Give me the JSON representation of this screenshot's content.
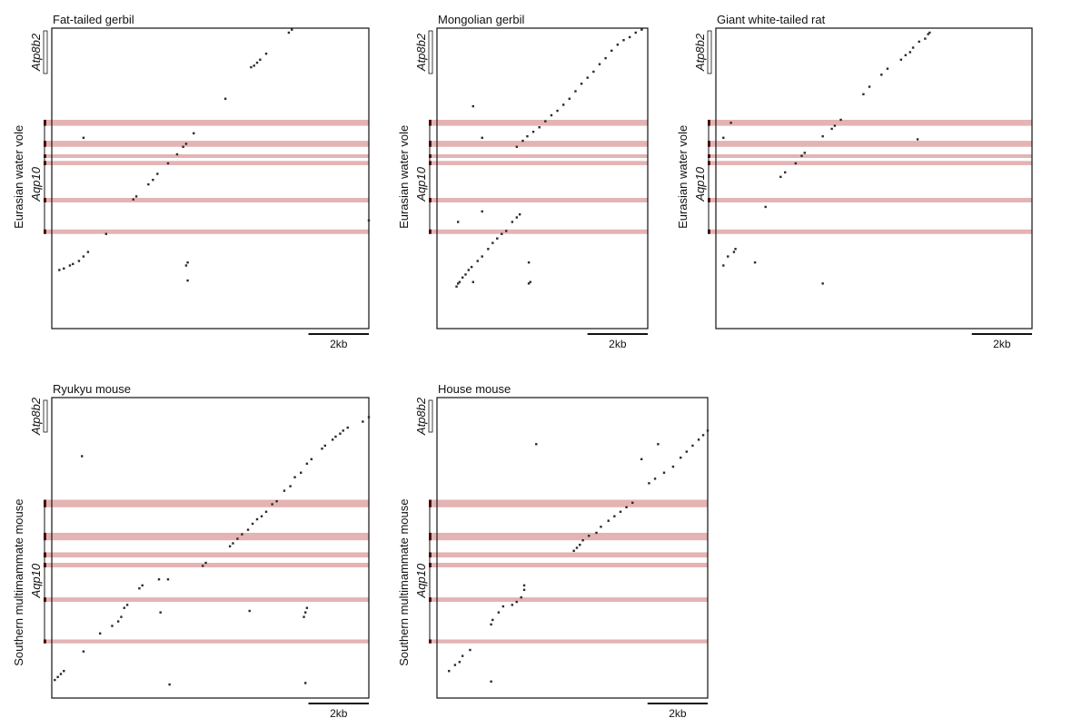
{
  "figure": {
    "scale_label": "2kb",
    "colors": {
      "dot": "#2b2b2b",
      "band": "#e4b3b3",
      "frame": "#111111",
      "gene_marker": "#6b0d0d"
    }
  },
  "chart_data": [
    {
      "type": "scatter",
      "title": "Fat-tailed gerbil",
      "ylabel": "Eurasian water vole",
      "gene_labels": [
        "Atp8b2",
        "Aqp10"
      ],
      "scale_label": "2kb",
      "x_range_kb": [
        0,
        10.5
      ],
      "y_range_kb": [
        0,
        10.0
      ],
      "scale_bar_kb": 2,
      "highlight_bands_kb": [
        [
          3.05,
          3.25
        ],
        [
          3.75,
          3.95
        ],
        [
          4.2,
          4.32
        ],
        [
          4.42,
          4.56
        ],
        [
          5.65,
          5.8
        ],
        [
          6.7,
          6.85
        ]
      ],
      "points": [
        [
          0.25,
          8.05
        ],
        [
          0.4,
          8.0
        ],
        [
          0.6,
          7.9
        ],
        [
          0.7,
          7.85
        ],
        [
          0.9,
          7.75
        ],
        [
          1.05,
          7.6
        ],
        [
          1.2,
          7.45
        ],
        [
          1.8,
          6.85
        ],
        [
          2.7,
          5.7
        ],
        [
          2.8,
          5.6
        ],
        [
          3.2,
          5.2
        ],
        [
          3.35,
          5.05
        ],
        [
          3.5,
          4.85
        ],
        [
          3.85,
          4.5
        ],
        [
          4.15,
          4.2
        ],
        [
          4.35,
          3.95
        ],
        [
          4.45,
          3.85
        ],
        [
          4.7,
          3.5
        ],
        [
          1.05,
          3.65
        ],
        [
          5.75,
          2.35
        ],
        [
          6.6,
          1.3
        ],
        [
          6.7,
          1.25
        ],
        [
          6.8,
          1.15
        ],
        [
          6.9,
          1.05
        ],
        [
          7.1,
          0.85
        ],
        [
          7.85,
          0.15
        ],
        [
          7.95,
          0.05
        ],
        [
          4.5,
          7.8
        ],
        [
          4.45,
          7.9
        ],
        [
          4.5,
          8.4
        ],
        [
          10.5,
          6.4
        ]
      ]
    },
    {
      "type": "scatter",
      "title": "Mongolian gerbil",
      "ylabel": "Eurasian water vole",
      "gene_labels": [
        "Atp8b2",
        "Aqp10"
      ],
      "scale_label": "2kb",
      "x_range_kb": [
        0,
        7.0
      ],
      "y_range_kb": [
        0,
        10.0
      ],
      "scale_bar_kb": 2,
      "highlight_bands_kb": [
        [
          3.05,
          3.25
        ],
        [
          3.75,
          3.95
        ],
        [
          4.2,
          4.32
        ],
        [
          4.42,
          4.56
        ],
        [
          5.65,
          5.8
        ],
        [
          6.7,
          6.85
        ]
      ],
      "points": [
        [
          0.65,
          8.6
        ],
        [
          0.7,
          8.5
        ],
        [
          0.75,
          8.45
        ],
        [
          0.85,
          8.3
        ],
        [
          0.95,
          8.2
        ],
        [
          1.05,
          8.05
        ],
        [
          1.15,
          7.95
        ],
        [
          1.35,
          7.75
        ],
        [
          1.5,
          7.6
        ],
        [
          1.7,
          7.35
        ],
        [
          1.85,
          7.15
        ],
        [
          2.0,
          7.0
        ],
        [
          2.15,
          6.85
        ],
        [
          2.3,
          6.75
        ],
        [
          2.5,
          6.45
        ],
        [
          2.65,
          6.3
        ],
        [
          2.75,
          6.2
        ],
        [
          2.65,
          3.95
        ],
        [
          2.85,
          3.75
        ],
        [
          3.0,
          3.6
        ],
        [
          3.2,
          3.45
        ],
        [
          3.4,
          3.3
        ],
        [
          3.6,
          3.1
        ],
        [
          3.8,
          2.9
        ],
        [
          4.0,
          2.75
        ],
        [
          4.2,
          2.55
        ],
        [
          4.4,
          2.35
        ],
        [
          4.6,
          2.1
        ],
        [
          4.8,
          1.85
        ],
        [
          5.0,
          1.65
        ],
        [
          5.2,
          1.45
        ],
        [
          5.4,
          1.2
        ],
        [
          5.6,
          1.0
        ],
        [
          5.8,
          0.75
        ],
        [
          6.0,
          0.55
        ],
        [
          6.2,
          0.4
        ],
        [
          6.4,
          0.3
        ],
        [
          6.6,
          0.15
        ],
        [
          6.8,
          0.05
        ],
        [
          1.2,
          2.6
        ],
        [
          1.5,
          3.65
        ],
        [
          1.5,
          6.1
        ],
        [
          0.7,
          6.45
        ],
        [
          1.2,
          8.45
        ],
        [
          3.05,
          7.8
        ],
        [
          3.1,
          8.45
        ],
        [
          3.05,
          8.5
        ]
      ]
    },
    {
      "type": "scatter",
      "title": "Giant white-tailed rat",
      "ylabel": "Eurasian water vole",
      "gene_labels": [
        "Atp8b2",
        "Aqp10"
      ],
      "scale_label": "2kb",
      "x_range_kb": [
        0,
        10.5
      ],
      "y_range_kb": [
        0,
        10.0
      ],
      "scale_bar_kb": 2,
      "highlight_bands_kb": [
        [
          3.05,
          3.25
        ],
        [
          3.75,
          3.95
        ],
        [
          4.2,
          4.32
        ],
        [
          4.42,
          4.56
        ],
        [
          5.65,
          5.8
        ],
        [
          6.7,
          6.85
        ]
      ],
      "points": [
        [
          0.25,
          7.9
        ],
        [
          0.4,
          7.6
        ],
        [
          0.6,
          7.45
        ],
        [
          0.65,
          7.35
        ],
        [
          1.65,
          5.95
        ],
        [
          2.15,
          4.95
        ],
        [
          2.3,
          4.8
        ],
        [
          2.65,
          4.5
        ],
        [
          2.85,
          4.25
        ],
        [
          2.95,
          4.15
        ],
        [
          3.55,
          3.6
        ],
        [
          3.85,
          3.35
        ],
        [
          3.95,
          3.25
        ],
        [
          4.15,
          3.05
        ],
        [
          4.9,
          2.2
        ],
        [
          5.1,
          1.95
        ],
        [
          5.5,
          1.55
        ],
        [
          5.7,
          1.35
        ],
        [
          6.15,
          1.05
        ],
        [
          6.3,
          0.9
        ],
        [
          6.45,
          0.8
        ],
        [
          6.55,
          0.65
        ],
        [
          6.75,
          0.45
        ],
        [
          6.95,
          0.35
        ],
        [
          7.05,
          0.2
        ],
        [
          7.1,
          0.15
        ],
        [
          0.5,
          3.15
        ],
        [
          0.25,
          3.65
        ],
        [
          3.55,
          8.5
        ],
        [
          1.3,
          7.8
        ],
        [
          6.7,
          3.7
        ]
      ]
    },
    {
      "type": "scatter",
      "title": "Ryukyu mouse",
      "ylabel": "Southern multimammate mouse",
      "gene_labels": [
        "Atp8b2",
        "Aqp10"
      ],
      "scale_label": "2kb",
      "x_range_kb": [
        0,
        10.5
      ],
      "y_range_kb": [
        0,
        10.0
      ],
      "scale_bar_kb": 2,
      "highlight_bands_kb": [
        [
          3.4,
          3.65
        ],
        [
          4.5,
          4.75
        ],
        [
          5.15,
          5.32
        ],
        [
          5.5,
          5.65
        ],
        [
          6.65,
          6.8
        ],
        [
          8.05,
          8.18
        ]
      ],
      "points": [
        [
          0.1,
          9.4
        ],
        [
          0.2,
          9.3
        ],
        [
          0.3,
          9.2
        ],
        [
          0.4,
          9.1
        ],
        [
          1.05,
          8.45
        ],
        [
          1.6,
          7.85
        ],
        [
          2.0,
          7.6
        ],
        [
          2.2,
          7.45
        ],
        [
          2.3,
          7.3
        ],
        [
          2.4,
          7.0
        ],
        [
          2.5,
          6.9
        ],
        [
          2.9,
          6.35
        ],
        [
          3.0,
          6.25
        ],
        [
          3.55,
          6.05
        ],
        [
          3.85,
          6.05
        ],
        [
          5.0,
          5.6
        ],
        [
          5.1,
          5.5
        ],
        [
          5.9,
          4.95
        ],
        [
          6.0,
          4.85
        ],
        [
          6.15,
          4.7
        ],
        [
          6.3,
          4.55
        ],
        [
          6.5,
          4.4
        ],
        [
          6.65,
          4.2
        ],
        [
          6.8,
          4.05
        ],
        [
          6.95,
          3.95
        ],
        [
          7.1,
          3.8
        ],
        [
          7.3,
          3.55
        ],
        [
          7.45,
          3.45
        ],
        [
          7.7,
          3.1
        ],
        [
          7.9,
          2.95
        ],
        [
          8.05,
          2.65
        ],
        [
          8.25,
          2.5
        ],
        [
          8.45,
          2.2
        ],
        [
          8.6,
          2.05
        ],
        [
          8.95,
          1.7
        ],
        [
          9.05,
          1.6
        ],
        [
          9.3,
          1.4
        ],
        [
          9.4,
          1.3
        ],
        [
          9.55,
          1.2
        ],
        [
          9.65,
          1.1
        ],
        [
          9.8,
          1.0
        ],
        [
          10.3,
          0.8
        ],
        [
          10.5,
          0.65
        ],
        [
          1.0,
          1.95
        ],
        [
          3.6,
          7.15
        ],
        [
          3.9,
          9.55
        ],
        [
          6.55,
          7.1
        ],
        [
          8.4,
          7.15
        ],
        [
          8.35,
          7.3
        ],
        [
          8.45,
          7.0
        ],
        [
          8.4,
          9.5
        ]
      ]
    },
    {
      "type": "scatter",
      "title": "House mouse",
      "ylabel": "Southern multimammate mouse",
      "gene_labels": [
        "Atp8b2",
        "Aqp10"
      ],
      "scale_label": "2kb",
      "x_range_kb": [
        0,
        9.0
      ],
      "y_range_kb": [
        0,
        10.0
      ],
      "scale_bar_kb": 2,
      "highlight_bands_kb": [
        [
          3.4,
          3.65
        ],
        [
          4.5,
          4.75
        ],
        [
          5.15,
          5.32
        ],
        [
          5.5,
          5.65
        ],
        [
          6.65,
          6.8
        ],
        [
          8.05,
          8.18
        ]
      ],
      "points": [
        [
          0.4,
          9.1
        ],
        [
          0.6,
          8.9
        ],
        [
          0.75,
          8.8
        ],
        [
          0.85,
          8.6
        ],
        [
          1.1,
          8.4
        ],
        [
          1.8,
          7.55
        ],
        [
          1.85,
          7.4
        ],
        [
          2.05,
          7.15
        ],
        [
          2.2,
          6.95
        ],
        [
          2.5,
          6.9
        ],
        [
          2.65,
          6.8
        ],
        [
          2.8,
          6.65
        ],
        [
          2.9,
          6.4
        ],
        [
          4.55,
          5.1
        ],
        [
          4.65,
          5.0
        ],
        [
          4.75,
          4.9
        ],
        [
          4.85,
          4.75
        ],
        [
          5.05,
          4.6
        ],
        [
          5.3,
          4.5
        ],
        [
          5.45,
          4.3
        ],
        [
          5.7,
          4.1
        ],
        [
          5.9,
          3.95
        ],
        [
          6.1,
          3.8
        ],
        [
          6.3,
          3.65
        ],
        [
          6.5,
          3.5
        ],
        [
          7.05,
          2.85
        ],
        [
          7.25,
          2.7
        ],
        [
          7.55,
          2.5
        ],
        [
          7.85,
          2.3
        ],
        [
          8.1,
          2.0
        ],
        [
          8.3,
          1.8
        ],
        [
          8.5,
          1.6
        ],
        [
          8.7,
          1.4
        ],
        [
          8.85,
          1.25
        ],
        [
          9.0,
          1.1
        ],
        [
          1.8,
          9.45
        ],
        [
          3.3,
          1.55
        ],
        [
          7.35,
          1.55
        ],
        [
          6.8,
          2.05
        ],
        [
          2.9,
          6.25
        ]
      ]
    }
  ]
}
